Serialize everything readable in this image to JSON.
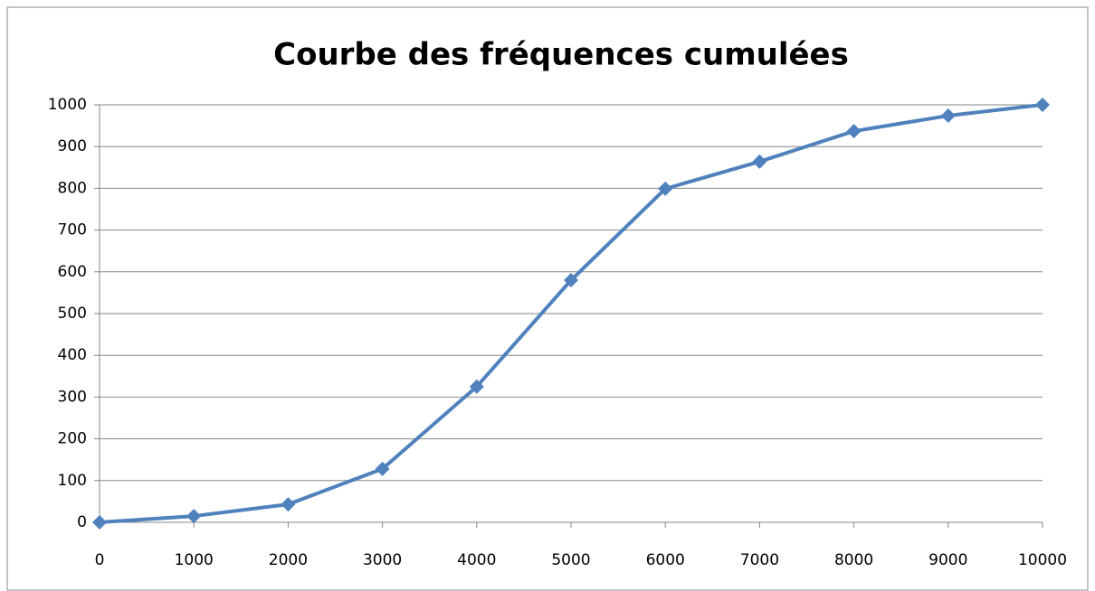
{
  "chart_data": {
    "type": "line",
    "title": "Courbe des fréquences cumulées",
    "x": [
      0,
      1000,
      2000,
      3000,
      4000,
      5000,
      6000,
      7000,
      8000,
      9000,
      10000
    ],
    "series": [
      {
        "color": "#4f81bd",
        "values": [
          0,
          15,
          43,
          128,
          325,
          580,
          799,
          864,
          937,
          974,
          1000
        ]
      }
    ],
    "xlim": [
      0,
      10000
    ],
    "xticks": [
      0,
      1000,
      2000,
      3000,
      4000,
      5000,
      6000,
      7000,
      8000,
      9000,
      10000
    ],
    "ylim": [
      0,
      1000
    ],
    "yticks": [
      0,
      100,
      200,
      300,
      400,
      500,
      600,
      700,
      800,
      900,
      1000
    ],
    "grid": true
  }
}
